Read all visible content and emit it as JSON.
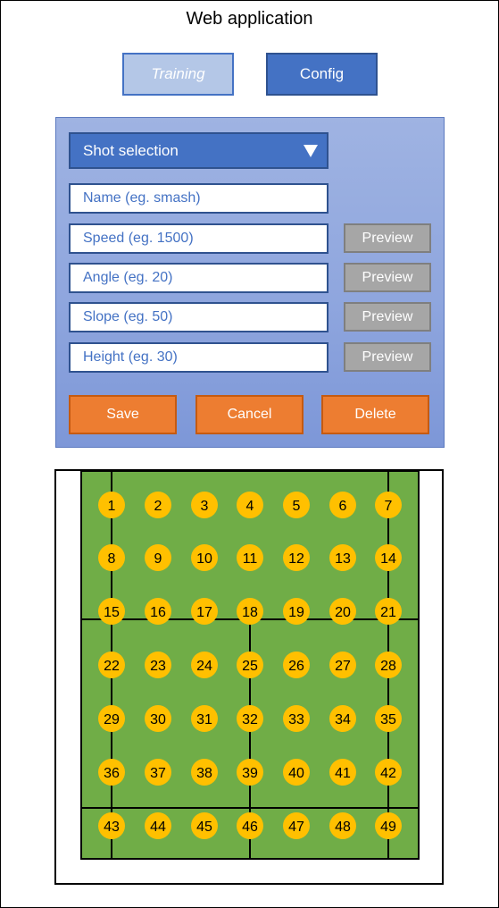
{
  "app": {
    "title": "Web application"
  },
  "tabs": [
    {
      "label": "Training",
      "active": false
    },
    {
      "label": "Config",
      "active": true
    }
  ],
  "form": {
    "shot_select": {
      "value": "Shot selection"
    },
    "fields": [
      {
        "key": "name",
        "placeholder": "Name (eg. smash)"
      },
      {
        "key": "speed",
        "placeholder": "Speed (eg. 1500)",
        "preview_label": "Preview"
      },
      {
        "key": "angle",
        "placeholder": "Angle (eg. 20)",
        "preview_label": "Preview"
      },
      {
        "key": "slope",
        "placeholder": "Slope (eg. 50)",
        "preview_label": "Preview"
      },
      {
        "key": "height",
        "placeholder": "Height (eg. 30)",
        "preview_label": "Preview"
      }
    ],
    "actions": {
      "save": "Save",
      "cancel": "Cancel",
      "delete": "Delete"
    }
  },
  "court": {
    "rows": 7,
    "cols": 7,
    "zones": [
      "1",
      "2",
      "3",
      "4",
      "5",
      "6",
      "7",
      "8",
      "9",
      "10",
      "11",
      "12",
      "13",
      "14",
      "15",
      "16",
      "17",
      "18",
      "19",
      "20",
      "21",
      "22",
      "23",
      "24",
      "25",
      "26",
      "27",
      "28",
      "29",
      "30",
      "31",
      "32",
      "33",
      "34",
      "35",
      "36",
      "37",
      "38",
      "39",
      "40",
      "41",
      "42",
      "43",
      "44",
      "45",
      "46",
      "47",
      "48",
      "49"
    ]
  },
  "colors": {
    "primary_blue": "#4472c4",
    "light_blue": "#b4c7e7",
    "panel_blue": "#8fa6de",
    "preview_grey": "#a6a6a6",
    "action_orange": "#ed7d31",
    "court_green": "#70ad47",
    "zone_yellow": "#ffc000"
  }
}
